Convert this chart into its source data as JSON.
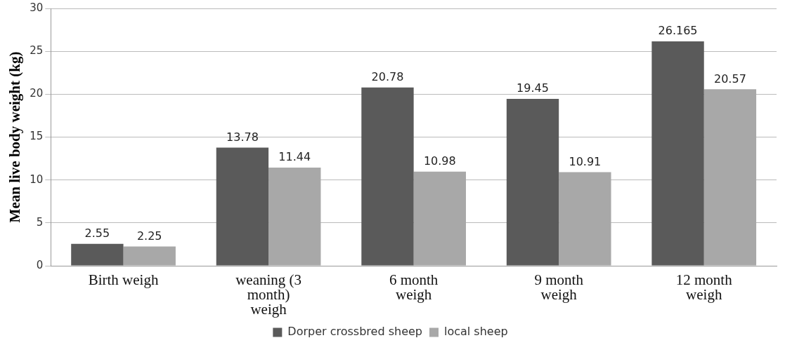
{
  "chart_data": {
    "type": "bar",
    "ylabel": "Mean live body weight (kg)",
    "categories": [
      "Birth weigh",
      "weaning (3 month) weigh",
      "6 month weigh",
      "9 month weigh",
      "12 month weigh"
    ],
    "series": [
      {
        "name": "Dorper crossbred sheep",
        "color": "#5a5a5a",
        "values": [
          2.55,
          13.78,
          20.78,
          19.45,
          26.165
        ]
      },
      {
        "name": "local sheep",
        "color": "#a8a8a8",
        "values": [
          2.25,
          11.44,
          10.98,
          10.91,
          20.57
        ]
      }
    ],
    "ylim": [
      0,
      30
    ],
    "yticks": [
      0,
      5,
      10,
      15,
      20,
      25,
      30
    ],
    "grid": "y",
    "legend": "bottom",
    "data_labels": true
  }
}
